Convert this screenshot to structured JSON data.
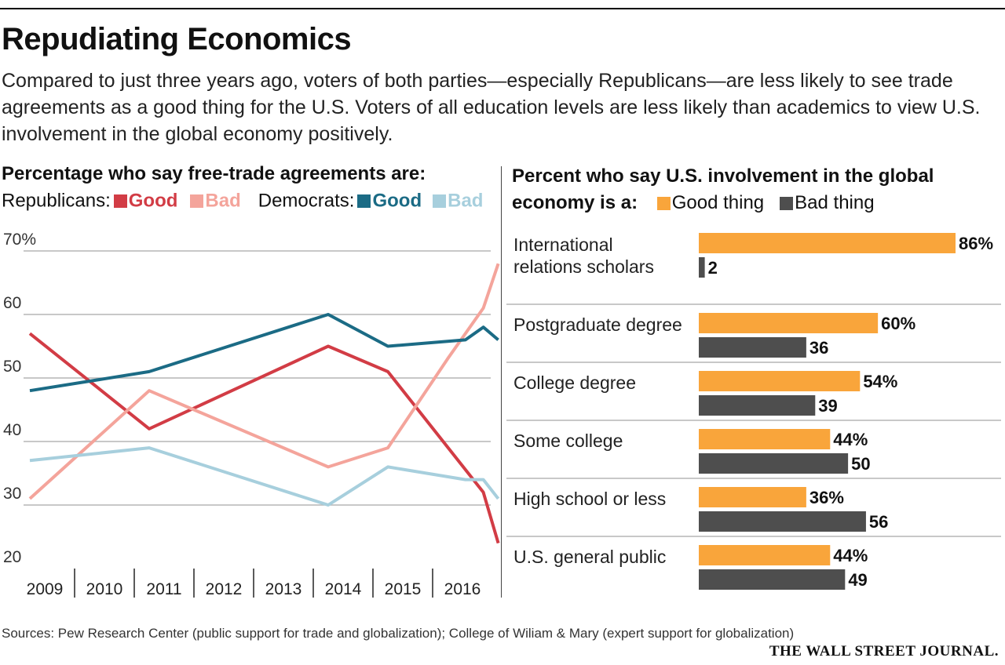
{
  "title": "Repudiating Economics",
  "subtitle": "Compared to just three years ago, voters of both parties—especially Republicans—are less likely to see trade agreements as a good thing for the U.S. Voters of all education levels are less likely than academics to view U.S. involvement in the global economy positively.",
  "left_panel": {
    "heading": "Percentage who say free-trade agreements are:",
    "legend": {
      "rep_label": "Republicans:",
      "dem_label": "Democrats:",
      "good": "Good",
      "bad": "Bad"
    }
  },
  "right_panel": {
    "heading_line1": "Percent who say U.S. involvement in the global",
    "heading_line2": "economy is a:",
    "legend_good": "Good thing",
    "legend_bad": "Bad thing"
  },
  "colors": {
    "rep_good": "#d23c45",
    "rep_bad": "#f4a49b",
    "dem_good": "#1b6b85",
    "dem_bad": "#a7cfdd",
    "bar_good": "#f9a53b",
    "bar_bad": "#4e4e4e",
    "grid": "#b5b5b5"
  },
  "chart_data": [
    {
      "type": "line",
      "title": "Percentage who say free-trade agreements are:",
      "y_tick_labels": [
        "70%",
        "60",
        "50",
        "40",
        "30",
        "20"
      ],
      "y_ticks": [
        70,
        60,
        50,
        40,
        30,
        20
      ],
      "ylim": [
        20,
        70
      ],
      "x_labels": [
        "2009",
        "2010",
        "2011",
        "2012",
        "2013",
        "2014",
        "2015",
        "2016"
      ],
      "grid": true,
      "series": [
        {
          "name": "Republicans: Good",
          "color_key": "rep_good",
          "points": [
            [
              2009.0,
              57
            ],
            [
              2011.0,
              42
            ],
            [
              2014.0,
              55
            ],
            [
              2015.0,
              51
            ],
            [
              2016.6,
              32
            ],
            [
              2016.85,
              24
            ]
          ]
        },
        {
          "name": "Republicans: Bad",
          "color_key": "rep_bad",
          "points": [
            [
              2009.0,
              31
            ],
            [
              2011.0,
              48
            ],
            [
              2014.0,
              36
            ],
            [
              2015.0,
              39
            ],
            [
              2016.0,
              53
            ],
            [
              2016.6,
              61
            ],
            [
              2016.85,
              68
            ]
          ]
        },
        {
          "name": "Democrats: Good",
          "color_key": "dem_good",
          "points": [
            [
              2009.0,
              48
            ],
            [
              2011.0,
              51
            ],
            [
              2014.0,
              60
            ],
            [
              2015.0,
              55
            ],
            [
              2016.3,
              56
            ],
            [
              2016.6,
              58
            ],
            [
              2016.85,
              56
            ]
          ]
        },
        {
          "name": "Democrats: Bad",
          "color_key": "dem_bad",
          "points": [
            [
              2009.0,
              37
            ],
            [
              2011.0,
              39
            ],
            [
              2014.0,
              30
            ],
            [
              2015.0,
              36
            ],
            [
              2016.3,
              34
            ],
            [
              2016.6,
              34
            ],
            [
              2016.85,
              31
            ]
          ]
        }
      ]
    },
    {
      "type": "bar",
      "orientation": "horizontal",
      "title": "Percent who say U.S. involvement in the global economy is a:",
      "categories": [
        "International relations scholars",
        "Postgraduate degree",
        "College degree",
        "Some college",
        "High school or less",
        "U.S. general public"
      ],
      "category_lines": [
        [
          "International",
          "relations scholars"
        ],
        [
          "Postgraduate degree"
        ],
        [
          "College degree"
        ],
        [
          "Some college"
        ],
        [
          "High school or less"
        ],
        [
          "U.S. general public"
        ]
      ],
      "series": [
        {
          "name": "Good thing",
          "values": [
            86,
            60,
            54,
            44,
            36,
            44
          ],
          "labels": [
            "86%",
            "60%",
            "54%",
            "44%",
            "36%",
            "44%"
          ]
        },
        {
          "name": "Bad thing",
          "values": [
            2,
            36,
            39,
            50,
            56,
            49
          ],
          "labels": [
            "2",
            "36",
            "39",
            "50",
            "56",
            "49"
          ]
        }
      ],
      "xlim": [
        0,
        86
      ]
    }
  ],
  "footer": {
    "sources": "Sources: Pew Research Center (public support for trade and globalization); College of Wiliam & Mary (expert support for globalization)",
    "publisher": "THE WALL STREET JOURNAL."
  }
}
